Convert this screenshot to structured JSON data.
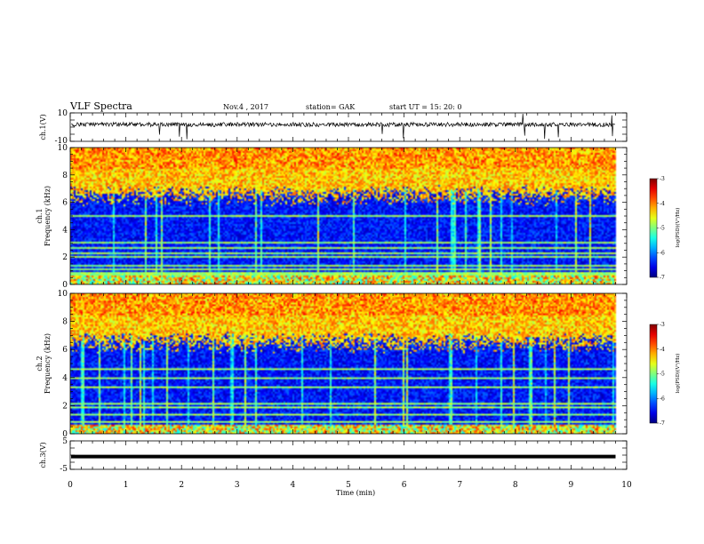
{
  "header": {
    "title": "VLF Spectra",
    "date": "Nov.4 , 2017",
    "station": "station= GAK",
    "start": "start UT = 15: 20: 0"
  },
  "chart_data": [
    {
      "type": "line",
      "panel": "ch1-waveform",
      "ylabel": "ch.1(V)",
      "ylim": [
        -10,
        10
      ],
      "yticks": [
        "10",
        "-10"
      ],
      "xlim": [
        0,
        10
      ],
      "trace_end_min": 9.8,
      "baseline_V": 1.8,
      "noise_amplitude_V": 1.5,
      "spike_peak_V": 9.5,
      "spike_trough_V": -9.5
    },
    {
      "type": "heatmap",
      "panel": "ch1-spectrogram",
      "ylabel": "ch.1\nFrequency (kHz)",
      "ylim": [
        0,
        10
      ],
      "yticks": [
        "0",
        "2",
        "4",
        "6",
        "8",
        "10"
      ],
      "xlim": [
        0,
        10
      ],
      "data_end_min": 9.8,
      "z_label": "log(PSD)(V²/Hz)",
      "zlim": [
        -7,
        -3
      ],
      "zticks": [
        "-3",
        "-4",
        "-5",
        "-6",
        "-7"
      ],
      "persistent_lines_kHz": [
        0.3,
        0.45,
        0.6,
        0.8,
        1.0,
        1.3,
        2.0,
        2.25,
        2.6,
        3.0,
        5.0
      ],
      "noise_floor_kHz": 6.5
    },
    {
      "type": "heatmap",
      "panel": "ch2-spectrogram",
      "ylabel": "ch.2\nFrequency (kHz)",
      "ylim": [
        0,
        10
      ],
      "yticks": [
        "0",
        "2",
        "4",
        "6",
        "8",
        "10"
      ],
      "xlim": [
        0,
        10
      ],
      "data_end_min": 9.8,
      "z_label": "log(PSD)(V²/Hz)",
      "zlim": [
        -7,
        -3
      ],
      "zticks": [
        "-3",
        "-4",
        "-5",
        "-6",
        "-7"
      ],
      "persistent_lines_kHz": [
        0.3,
        0.5,
        0.8,
        1.3,
        1.8,
        2.1,
        3.3,
        4.0,
        4.6
      ],
      "noise_floor_kHz": 6.5
    },
    {
      "type": "line",
      "panel": "ch3-waveform",
      "ylabel": "ch.3(V)",
      "ylim": [
        -5,
        5
      ],
      "yticks": [
        "5",
        "-5"
      ],
      "xlim": [
        0,
        10
      ],
      "trace_end_min": 9.8,
      "value_V": -0.5,
      "xlabel": "Time (min)",
      "xticks": [
        "0",
        "1",
        "2",
        "3",
        "4",
        "5",
        "6",
        "7",
        "8",
        "9",
        "10"
      ]
    }
  ]
}
